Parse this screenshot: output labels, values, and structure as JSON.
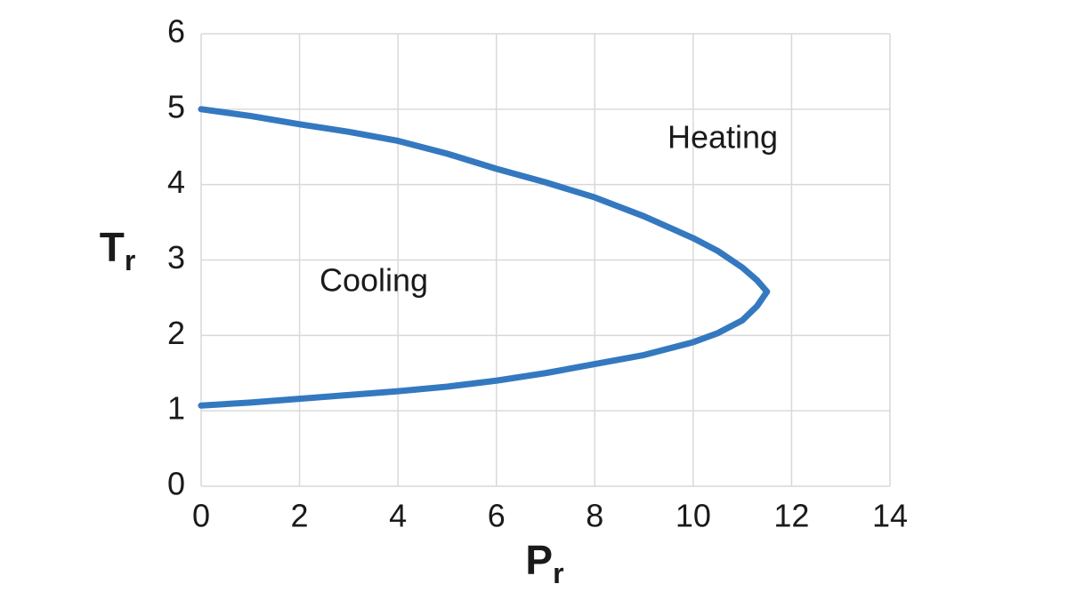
{
  "chart_data": {
    "type": "line",
    "xlabel": {
      "text": "P",
      "subscript": "r"
    },
    "ylabel": {
      "text": "T",
      "subscript": "r"
    },
    "annotations": [
      "Heating",
      "Cooling"
    ],
    "x": [
      0,
      1,
      2,
      3,
      4,
      5,
      6,
      7,
      8,
      9,
      10,
      10.5,
      11,
      11.3,
      11.5,
      11.3,
      11,
      10.5,
      10,
      9,
      8,
      7,
      6,
      5,
      4,
      3,
      2,
      1,
      0
    ],
    "series": [
      {
        "color": "#3479c0",
        "values": [
          5.0,
          4.91,
          4.8,
          4.7,
          4.58,
          4.41,
          4.21,
          4.03,
          3.83,
          3.58,
          3.29,
          3.12,
          2.9,
          2.73,
          2.58,
          2.39,
          2.2,
          2.03,
          1.91,
          1.74,
          1.62,
          1.5,
          1.4,
          1.32,
          1.26,
          1.21,
          1.16,
          1.11,
          1.07
        ]
      }
    ],
    "xlim": [
      0,
      14
    ],
    "xticks": [
      0,
      2,
      4,
      6,
      8,
      10,
      12,
      14
    ],
    "ylim": [
      0,
      6
    ],
    "yticks": [
      0,
      1,
      2,
      3,
      4,
      5,
      6
    ],
    "grid": true
  }
}
